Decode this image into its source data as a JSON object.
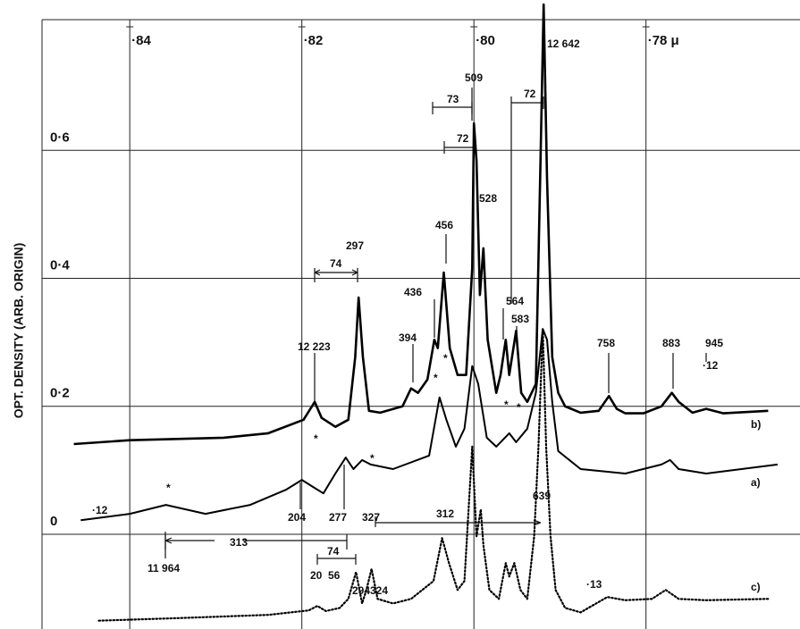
{
  "chart_data": {
    "type": "line",
    "ylabel": "OPT. DENSITY   (ARB. ORIGIN)",
    "xlim": [
      0.8502,
      0.7621
    ],
    "ylim": [
      -0.148,
      0.835
    ],
    "xticks": [
      {
        "value": 0.84,
        "label": "·84"
      },
      {
        "value": 0.82,
        "label": "·82"
      },
      {
        "value": 0.8,
        "label": "·80"
      },
      {
        "value": 0.78,
        "label": "·78 μ"
      }
    ],
    "yticks": [
      0,
      {
        "value": 0.2,
        "label": "0·2"
      },
      {
        "value": 0.4,
        "label": "0·4"
      },
      {
        "value": 0.6,
        "label": "0·6"
      }
    ],
    "grid": true,
    "series": [
      {
        "name": "b)",
        "color": "#000000",
        "style": "solid",
        "x": [
          0.8465,
          0.84,
          0.8291,
          0.8239,
          0.8198,
          0.8185,
          0.8177,
          0.8161,
          0.8146,
          0.8138,
          0.8134,
          0.8129,
          0.8122,
          0.8109,
          0.8083,
          0.8073,
          0.8065,
          0.8054,
          0.8046,
          0.8042,
          0.8035,
          0.8028,
          0.8019,
          0.8009,
          0.8002,
          0.8,
          0.7997,
          0.7993,
          0.7989,
          0.7984,
          0.7974,
          0.7969,
          0.7963,
          0.7959,
          0.7951,
          0.7945,
          0.7938,
          0.7928,
          0.7923,
          0.7919,
          0.7915,
          0.7909,
          0.7902,
          0.7894,
          0.7876,
          0.7855,
          0.7843,
          0.7834,
          0.7824,
          0.7803,
          0.7782,
          0.777,
          0.7762,
          0.7746,
          0.773,
          0.771,
          0.7658
        ],
        "values": [
          0.141,
          0.147,
          0.151,
          0.158,
          0.179,
          0.207,
          0.182,
          0.168,
          0.179,
          0.277,
          0.37,
          0.277,
          0.193,
          0.19,
          0.2,
          0.228,
          0.221,
          0.242,
          0.304,
          0.291,
          0.409,
          0.291,
          0.249,
          0.249,
          0.416,
          0.642,
          0.584,
          0.374,
          0.447,
          0.304,
          0.221,
          0.249,
          0.304,
          0.249,
          0.318,
          0.221,
          0.207,
          0.235,
          0.556,
          0.828,
          0.556,
          0.277,
          0.221,
          0.2,
          0.19,
          0.193,
          0.216,
          0.196,
          0.189,
          0.189,
          0.2,
          0.221,
          0.207,
          0.19,
          0.196,
          0.189,
          0.193
        ]
      },
      {
        "name": "a)",
        "color": "#000000",
        "style": "solid",
        "x": [
          0.8457,
          0.84,
          0.8358,
          0.8312,
          0.826,
          0.8218,
          0.82,
          0.8187,
          0.8175,
          0.8161,
          0.8149,
          0.814,
          0.813,
          0.812,
          0.8094,
          0.8052,
          0.804,
          0.8032,
          0.8021,
          0.8011,
          0.8002,
          0.7995,
          0.7985,
          0.7974,
          0.7959,
          0.7951,
          0.7938,
          0.7928,
          0.792,
          0.7915,
          0.7909,
          0.7902,
          0.7876,
          0.7824,
          0.7782,
          0.7772,
          0.7762,
          0.773,
          0.7689,
          0.7647
        ],
        "values": [
          0.022,
          0.032,
          0.046,
          0.032,
          0.046,
          0.07,
          0.085,
          0.074,
          0.064,
          0.095,
          0.12,
          0.102,
          0.116,
          0.109,
          0.102,
          0.123,
          0.214,
          0.179,
          0.137,
          0.165,
          0.263,
          0.235,
          0.151,
          0.137,
          0.158,
          0.144,
          0.165,
          0.221,
          0.321,
          0.304,
          0.207,
          0.13,
          0.102,
          0.095,
          0.109,
          0.116,
          0.102,
          0.095,
          0.102,
          0.109
        ]
      },
      {
        "name": "c)",
        "color": "#000000",
        "style": "dotted",
        "x": [
          0.8436,
          0.8343,
          0.8239,
          0.8192,
          0.8182,
          0.8172,
          0.8156,
          0.8146,
          0.8137,
          0.813,
          0.8125,
          0.8119,
          0.8112,
          0.8094,
          0.8073,
          0.8047,
          0.8037,
          0.8029,
          0.8019,
          0.8011,
          0.8002,
          0.7997,
          0.7992,
          0.7989,
          0.7982,
          0.7971,
          0.7963,
          0.7959,
          0.7953,
          0.7946,
          0.7938,
          0.793,
          0.7925,
          0.792,
          0.7916,
          0.7911,
          0.7905,
          0.7894,
          0.7876,
          0.7845,
          0.7824,
          0.7793,
          0.7777,
          0.7762,
          0.773,
          0.7658
        ],
        "values": [
          -0.135,
          -0.131,
          -0.126,
          -0.119,
          -0.112,
          -0.12,
          -0.115,
          -0.101,
          -0.059,
          -0.108,
          -0.087,
          -0.054,
          -0.101,
          -0.108,
          -0.101,
          -0.073,
          -0.006,
          -0.045,
          -0.087,
          -0.073,
          0.137,
          -0.003,
          0.039,
          -0.017,
          -0.087,
          -0.101,
          -0.045,
          -0.066,
          -0.045,
          -0.087,
          -0.101,
          -0.003,
          0.137,
          0.321,
          0.137,
          -0.003,
          -0.087,
          -0.115,
          -0.122,
          -0.098,
          -0.103,
          -0.101,
          -0.087,
          -0.101,
          -0.103,
          -0.101
        ]
      }
    ],
    "annotations": [
      "12 642",
      "509",
      "73",
      "72",
      "72",
      "528",
      "456",
      "297",
      "74",
      "436",
      "564",
      "583",
      "394",
      "12 223",
      "758",
      "883",
      "945",
      "·12",
      "·12",
      "204",
      "277",
      "327",
      "312",
      "639",
      "313",
      "11 964",
      "74",
      "20",
      "56",
      "294",
      "324",
      "·13",
      "*",
      "*",
      "*",
      "*",
      "*",
      "*",
      "*"
    ]
  }
}
